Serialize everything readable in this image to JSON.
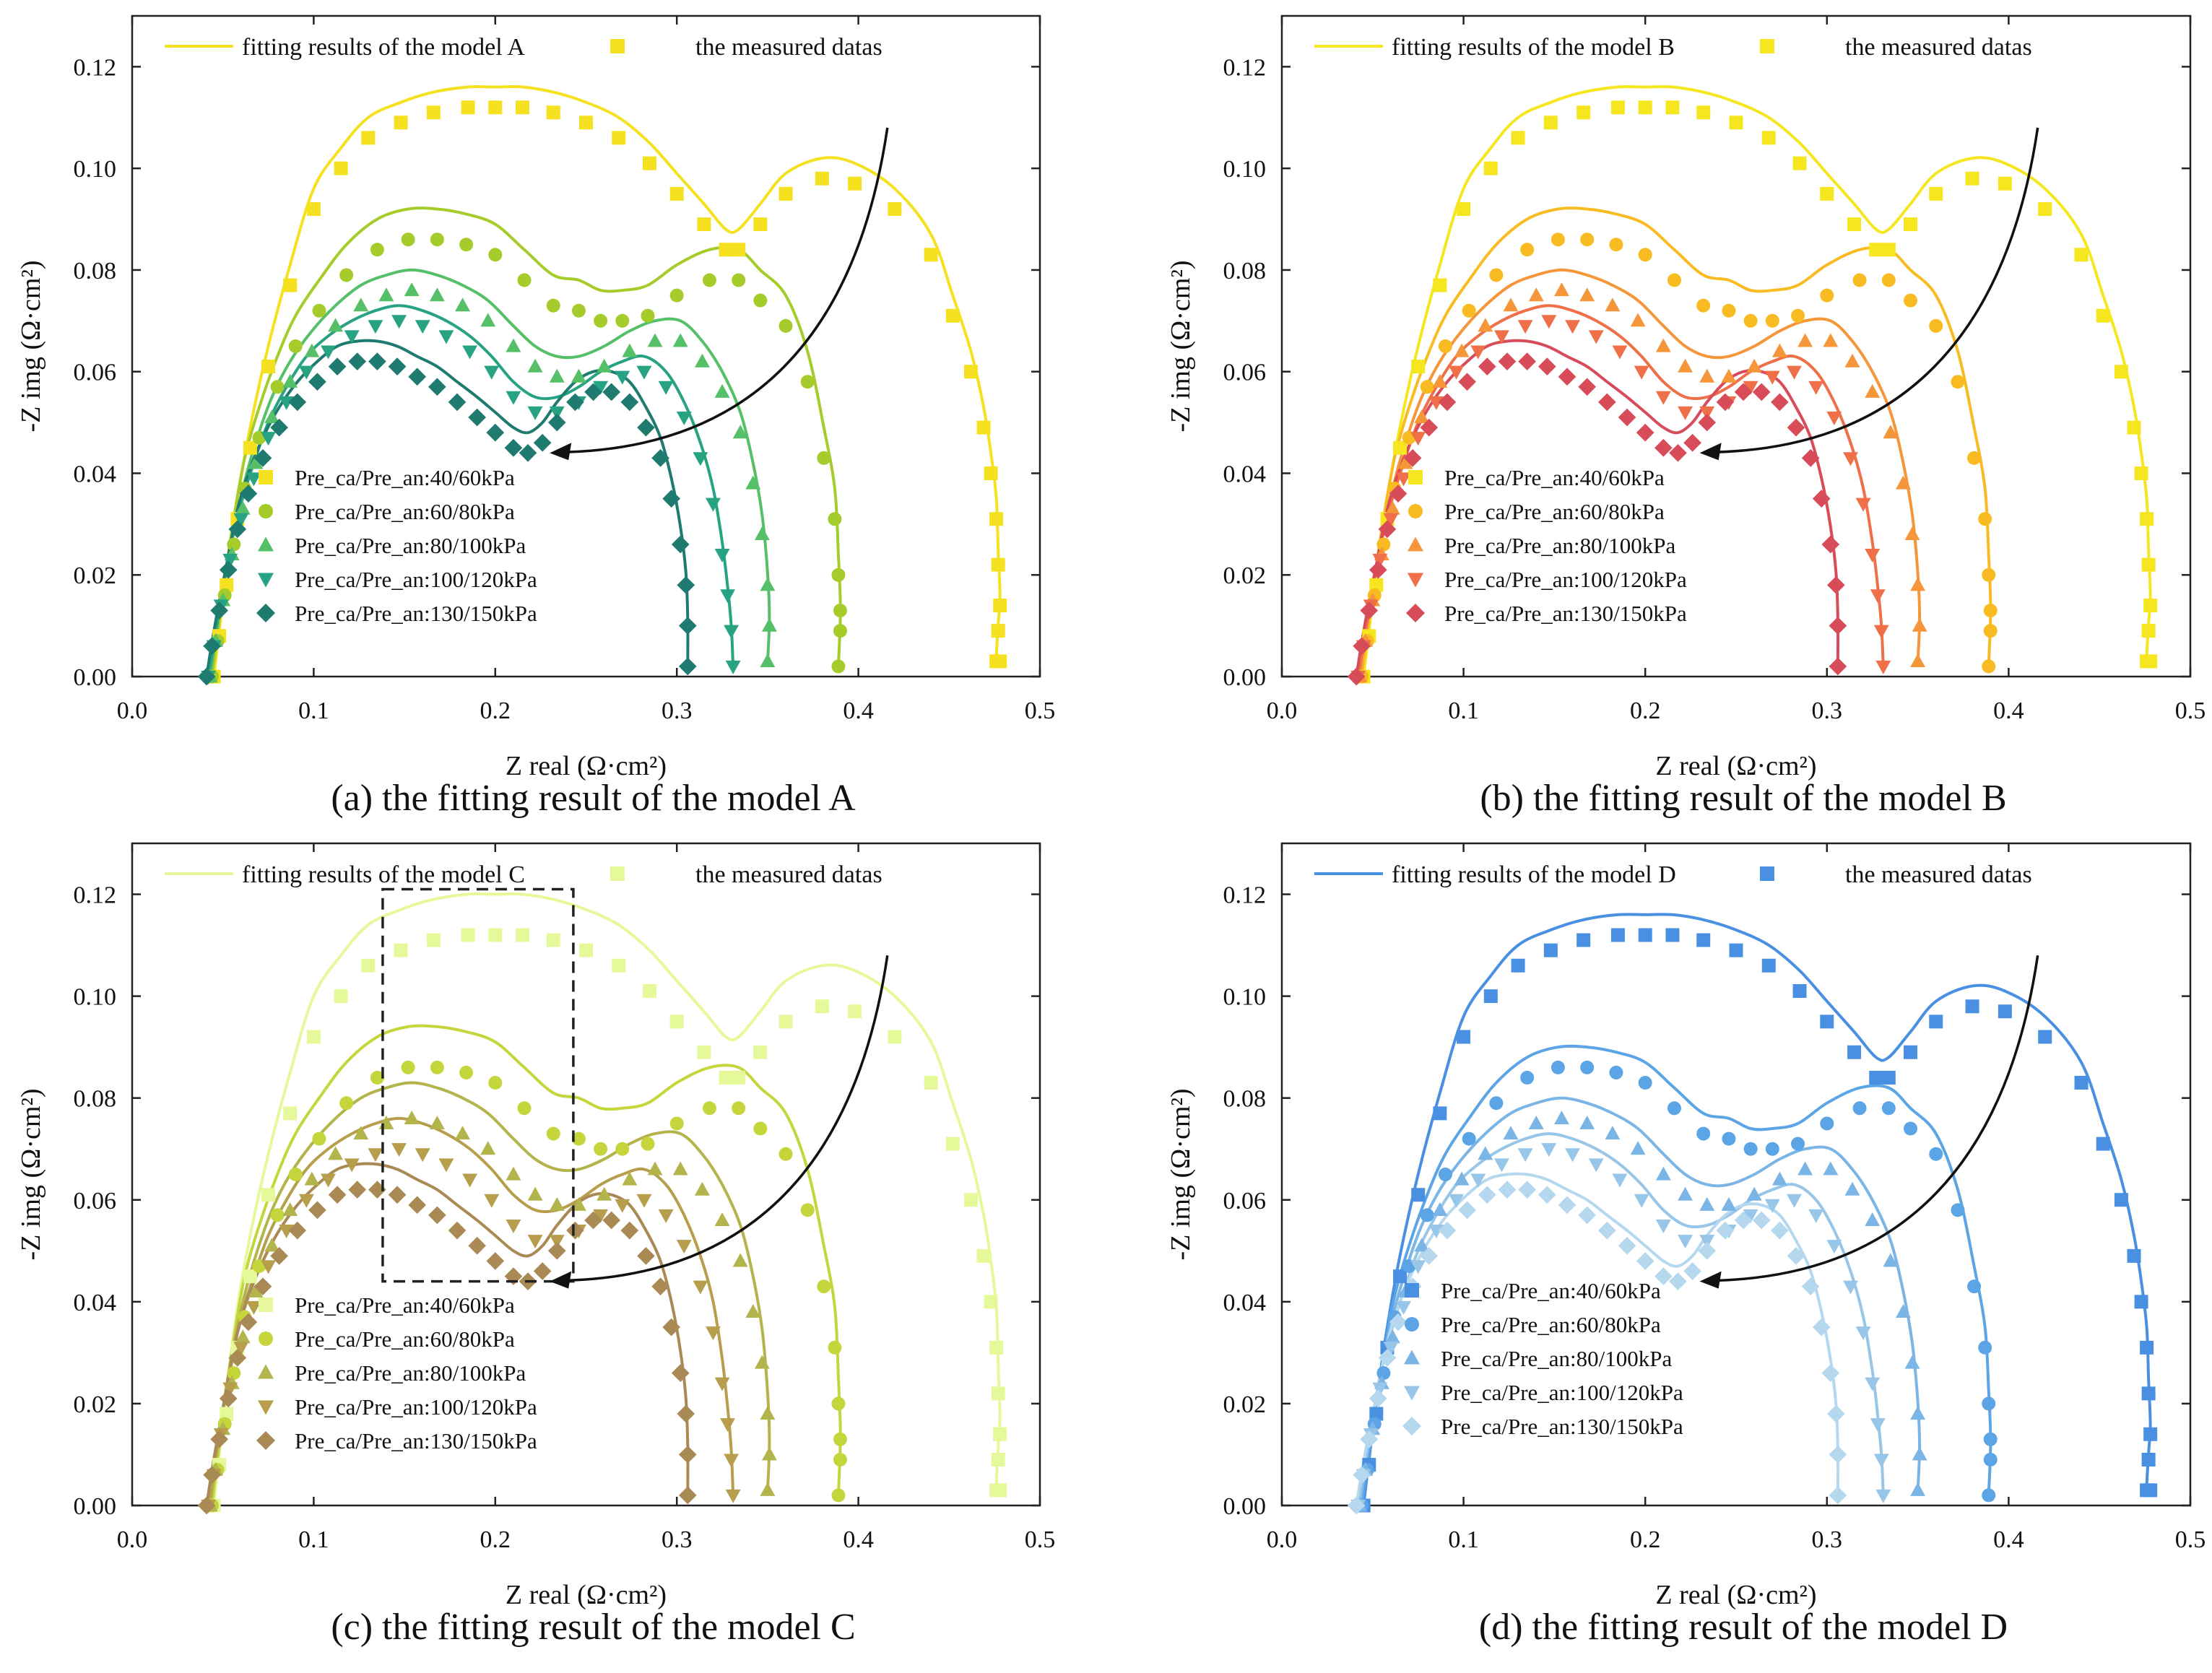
{
  "figure": {
    "x_axis_label": "Z real (Ω·cm²)",
    "y_axis_label": "-Z img (Ω·cm²)",
    "x_ticks": [
      "0.0",
      "0.1",
      "0.2",
      "0.3",
      "0.4",
      "0.5"
    ],
    "y_ticks": [
      "0.00",
      "0.02",
      "0.04",
      "0.06",
      "0.08",
      "0.10",
      "0.12"
    ],
    "conditions": [
      "Pre_ca/Pre_an:40/60kPa",
      "Pre_ca/Pre_an:60/80kPa",
      "Pre_ca/Pre_an:80/100kPa",
      "Pre_ca/Pre_an:100/120kPa",
      "Pre_ca/Pre_an:130/150kPa"
    ],
    "markers": [
      "square",
      "circle",
      "triangle-up",
      "triangle-down",
      "diamond"
    ]
  },
  "chart_data": [
    {
      "type": "scatter",
      "panel": "a",
      "caption": "(a) the fitting result of the model A",
      "legend_fit_label": "fitting results of the model A",
      "legend_data_label": "the measured datas",
      "xlabel": "Z real (Ω·cm²)",
      "ylabel": "-Z img (Ω·cm²)",
      "xlim": [
        0.0,
        0.5
      ],
      "ylim": [
        0.0,
        0.13
      ],
      "colors": [
        "#f5e11f",
        "#a5cc2a",
        "#55c067",
        "#27a383",
        "#1f7a70"
      ],
      "fit_colors": [
        "#f5e11f",
        "#a5cc2a",
        "#55c067",
        "#27a383",
        "#1f7a70"
      ],
      "fit_offset": [
        0.004,
        0.006,
        0.004,
        0.003,
        0.004
      ],
      "has_box": false
    },
    {
      "type": "scatter",
      "panel": "b",
      "caption": "(b) the fitting result of the model B",
      "legend_fit_label": "fitting results of the model B",
      "legend_data_label": "the measured datas",
      "xlabel": "Z real (Ω·cm²)",
      "ylabel": "-Z img (Ω·cm²)",
      "xlim": [
        0.0,
        0.5
      ],
      "ylim": [
        0.0,
        0.13
      ],
      "colors": [
        "#f5e61f",
        "#f9bb22",
        "#f6963a",
        "#ee6f48",
        "#d84c5a"
      ],
      "fit_colors": [
        "#f5e61f",
        "#f9bb22",
        "#f6963a",
        "#ee6f48",
        "#d84c5a"
      ],
      "fit_offset": [
        0.004,
        0.006,
        0.004,
        0.003,
        0.004
      ],
      "has_box": false
    },
    {
      "type": "scatter",
      "panel": "c",
      "caption": "(c) the fitting result of the model C",
      "legend_fit_label": "fitting results of the model C",
      "legend_data_label": "the measured datas",
      "xlabel": "Z real (Ω·cm²)",
      "ylabel": "-Z img (Ω·cm²)",
      "xlim": [
        0.0,
        0.5
      ],
      "ylim": [
        0.0,
        0.13
      ],
      "colors": [
        "#e6f99a",
        "#c5d63d",
        "#b4b44c",
        "#b69e4c",
        "#a98a55"
      ],
      "fit_colors": [
        "#e6f99a",
        "#c5d63d",
        "#b4b44c",
        "#b69e4c",
        "#a98a55"
      ],
      "fit_offset": [
        0.008,
        0.008,
        0.007,
        0.006,
        0.005
      ],
      "has_box": true
    },
    {
      "type": "scatter",
      "panel": "d",
      "caption": "(d) the fitting result of the model D",
      "legend_fit_label": "fitting results of the model D",
      "legend_data_label": "the measured datas",
      "xlabel": "Z real (Ω·cm²)",
      "ylabel": "-Z img (Ω·cm²)",
      "xlim": [
        0.0,
        0.5
      ],
      "ylim": [
        0.0,
        0.13
      ],
      "colors": [
        "#4a90e2",
        "#5ba4e6",
        "#7ab5e6",
        "#97c6e9",
        "#b5d8ef"
      ],
      "fit_colors": [
        "#4a90e2",
        "#5ba4e6",
        "#7ab5e6",
        "#97c6e9",
        "#b5d8ef"
      ],
      "fit_offset": [
        0.004,
        0.004,
        0.004,
        0.003,
        0.003
      ],
      "has_box": false
    }
  ],
  "series_data": [
    {
      "name": "Pre_ca/Pre_an:40/60kPa",
      "x": [
        0.045,
        0.048,
        0.052,
        0.058,
        0.065,
        0.075,
        0.087,
        0.1,
        0.115,
        0.13,
        0.148,
        0.166,
        0.185,
        0.2,
        0.215,
        0.232,
        0.25,
        0.268,
        0.285,
        0.3,
        0.315,
        0.327,
        0.334,
        0.346,
        0.36,
        0.38,
        0.398,
        0.42,
        0.44,
        0.452,
        0.462,
        0.469,
        0.473,
        0.476,
        0.477,
        0.478,
        0.477,
        0.476,
        0.478
      ],
      "y": [
        0.0,
        0.008,
        0.018,
        0.031,
        0.045,
        0.061,
        0.077,
        0.092,
        0.1,
        0.106,
        0.109,
        0.111,
        0.112,
        0.112,
        0.112,
        0.111,
        0.109,
        0.106,
        0.101,
        0.095,
        0.089,
        0.084,
        0.084,
        0.089,
        0.095,
        0.098,
        0.097,
        0.092,
        0.083,
        0.071,
        0.06,
        0.049,
        0.04,
        0.031,
        0.022,
        0.014,
        0.009,
        0.003,
        0.003
      ]
    },
    {
      "name": "Pre_ca/Pre_an:60/80kPa",
      "x": [
        0.044,
        0.047,
        0.051,
        0.056,
        0.062,
        0.07,
        0.08,
        0.09,
        0.103,
        0.118,
        0.135,
        0.152,
        0.168,
        0.184,
        0.2,
        0.216,
        0.232,
        0.246,
        0.258,
        0.27,
        0.284,
        0.3,
        0.318,
        0.334,
        0.346,
        0.36,
        0.372,
        0.381,
        0.387,
        0.389,
        0.39,
        0.39,
        0.389
      ],
      "y": [
        0.0,
        0.007,
        0.016,
        0.026,
        0.037,
        0.047,
        0.057,
        0.065,
        0.072,
        0.079,
        0.084,
        0.086,
        0.086,
        0.085,
        0.083,
        0.078,
        0.073,
        0.072,
        0.07,
        0.07,
        0.071,
        0.075,
        0.078,
        0.078,
        0.074,
        0.069,
        0.058,
        0.043,
        0.031,
        0.02,
        0.013,
        0.009,
        0.002
      ]
    },
    {
      "name": "Pre_ca/Pre_an:80/100kPa",
      "x": [
        0.043,
        0.046,
        0.05,
        0.055,
        0.061,
        0.068,
        0.077,
        0.087,
        0.099,
        0.112,
        0.126,
        0.14,
        0.154,
        0.168,
        0.182,
        0.196,
        0.21,
        0.222,
        0.234,
        0.246,
        0.26,
        0.274,
        0.288,
        0.302,
        0.314,
        0.325,
        0.335,
        0.342,
        0.347,
        0.35,
        0.351,
        0.35
      ],
      "y": [
        0.0,
        0.007,
        0.015,
        0.024,
        0.033,
        0.042,
        0.051,
        0.058,
        0.064,
        0.069,
        0.073,
        0.075,
        0.076,
        0.075,
        0.073,
        0.07,
        0.065,
        0.061,
        0.059,
        0.059,
        0.061,
        0.064,
        0.066,
        0.066,
        0.062,
        0.056,
        0.048,
        0.038,
        0.028,
        0.018,
        0.01,
        0.003
      ]
    },
    {
      "name": "Pre_ca/Pre_an:100/120kPa",
      "x": [
        0.042,
        0.045,
        0.049,
        0.054,
        0.06,
        0.067,
        0.075,
        0.085,
        0.096,
        0.108,
        0.121,
        0.134,
        0.147,
        0.16,
        0.173,
        0.186,
        0.198,
        0.21,
        0.222,
        0.234,
        0.246,
        0.258,
        0.27,
        0.282,
        0.294,
        0.304,
        0.313,
        0.32,
        0.325,
        0.328,
        0.33,
        0.331
      ],
      "y": [
        0.0,
        0.006,
        0.014,
        0.023,
        0.031,
        0.039,
        0.047,
        0.054,
        0.06,
        0.064,
        0.067,
        0.069,
        0.07,
        0.069,
        0.067,
        0.064,
        0.06,
        0.055,
        0.052,
        0.052,
        0.054,
        0.057,
        0.059,
        0.06,
        0.057,
        0.051,
        0.043,
        0.034,
        0.024,
        0.016,
        0.009,
        0.002
      ]
    },
    {
      "name": "Pre_ca/Pre_an:130/150kPa",
      "x": [
        0.041,
        0.044,
        0.048,
        0.053,
        0.058,
        0.064,
        0.072,
        0.081,
        0.091,
        0.102,
        0.113,
        0.124,
        0.135,
        0.146,
        0.157,
        0.168,
        0.179,
        0.19,
        0.2,
        0.21,
        0.218,
        0.226,
        0.234,
        0.244,
        0.254,
        0.264,
        0.274,
        0.283,
        0.291,
        0.297,
        0.302,
        0.305,
        0.306,
        0.306
      ],
      "y": [
        0.0,
        0.006,
        0.013,
        0.021,
        0.029,
        0.036,
        0.043,
        0.049,
        0.054,
        0.058,
        0.061,
        0.062,
        0.062,
        0.061,
        0.059,
        0.057,
        0.054,
        0.051,
        0.048,
        0.045,
        0.044,
        0.046,
        0.05,
        0.054,
        0.056,
        0.056,
        0.054,
        0.049,
        0.043,
        0.035,
        0.026,
        0.018,
        0.01,
        0.002
      ]
    }
  ]
}
